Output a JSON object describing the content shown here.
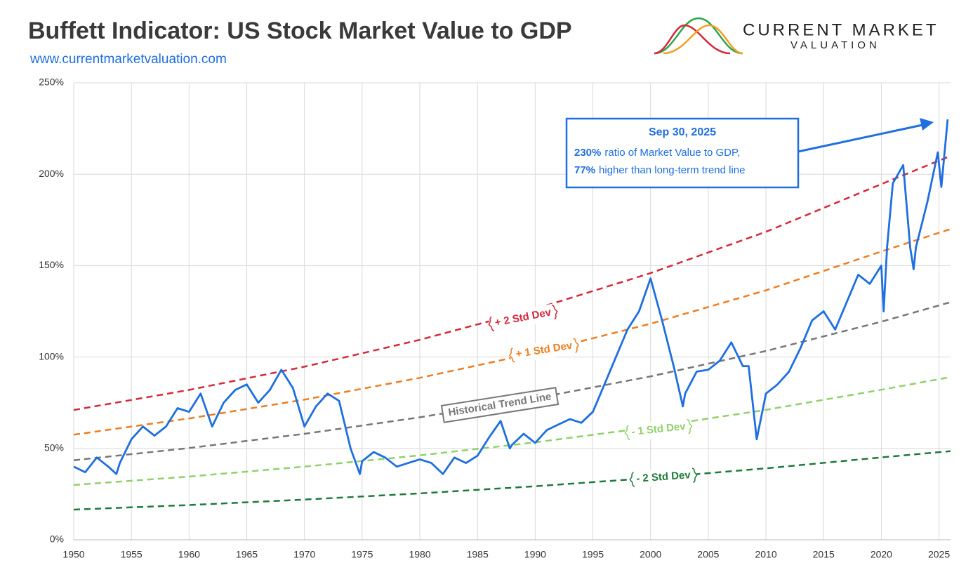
{
  "chart_data": {
    "type": "line",
    "title": "Buffett Indicator: US Stock Market Value to GDP",
    "subtitle": "www.currentmarketvaluation.com",
    "logo": {
      "line1": "CURRENT MARKET",
      "line2": "VALUATION"
    },
    "xlim": [
      1950,
      2026
    ],
    "xticks": [
      1950,
      1955,
      1960,
      1965,
      1970,
      1975,
      1980,
      1985,
      1990,
      1995,
      2000,
      2005,
      2010,
      2015,
      2020,
      2025
    ],
    "ylim": [
      0,
      250
    ],
    "yticks": [
      {
        "value": 0,
        "label": "0%"
      },
      {
        "value": 50,
        "label": "50%"
      },
      {
        "value": 100,
        "label": "100%"
      },
      {
        "value": 150,
        "label": "150%"
      },
      {
        "value": 200,
        "label": "200%"
      },
      {
        "value": 250,
        "label": "250%"
      }
    ],
    "grid": true,
    "series": [
      {
        "color": "#1f6fe0",
        "x": [
          1950,
          1951,
          1952,
          1953,
          1953.7,
          1954,
          1955,
          1956,
          1957,
          1958,
          1959,
          1960,
          1961,
          1962,
          1963,
          1964,
          1965,
          1966,
          1967,
          1968,
          1969,
          1970,
          1971,
          1972,
          1973,
          1974,
          1974.8,
          1975,
          1976,
          1977,
          1978,
          1979,
          1980,
          1981,
          1982,
          1983,
          1984,
          1985,
          1986,
          1987,
          1987.8,
          1988,
          1989,
          1990,
          1991,
          1992,
          1993,
          1994,
          1995,
          1996,
          1997,
          1998,
          1999,
          2000,
          2001,
          2002,
          2002.8,
          2003,
          2004,
          2005,
          2006,
          2007,
          2008,
          2008.5,
          2009.2,
          2010,
          2011,
          2012,
          2013,
          2014,
          2015,
          2016,
          2017,
          2018,
          2019,
          2020,
          2020.2,
          2020.5,
          2021,
          2021.9,
          2022.5,
          2022.8,
          2023,
          2024,
          2024.9,
          2025.2,
          2025.75
        ],
        "values": [
          40,
          37,
          45,
          40,
          36,
          42,
          55,
          62,
          57,
          62,
          72,
          70,
          80,
          62,
          75,
          82,
          85,
          75,
          82,
          93,
          83,
          62,
          73,
          80,
          76,
          50,
          36,
          43,
          48,
          45,
          40,
          42,
          44,
          42,
          36,
          45,
          42,
          46,
          56,
          65,
          50,
          52,
          58,
          53,
          60,
          63,
          66,
          64,
          70,
          85,
          100,
          115,
          125,
          143,
          120,
          95,
          73,
          80,
          92,
          93,
          98,
          108,
          95,
          95,
          55,
          80,
          85,
          92,
          105,
          120,
          125,
          115,
          130,
          145,
          140,
          150,
          125,
          160,
          195,
          205,
          160,
          148,
          160,
          185,
          212,
          193,
          230
        ]
      },
      {
        "name": "+ 2 Std Dev",
        "color": "#d62839",
        "dashed": true,
        "x": [
          1950,
          1960,
          1970,
          1980,
          1990,
          2000,
          2010,
          2020,
          2026
        ],
        "values": [
          71,
          82,
          94.7,
          109.4,
          126.3,
          145.9,
          168.5,
          194.6,
          210
        ]
      },
      {
        "name": "+ 1 Std Dev",
        "color": "#f07c1e",
        "dashed": true,
        "x": [
          1950,
          1960,
          1970,
          1980,
          1990,
          2000,
          2010,
          2020,
          2026
        ],
        "values": [
          57.5,
          66.4,
          76.7,
          88.6,
          102.3,
          118.2,
          136.5,
          157.7,
          170
        ]
      },
      {
        "name": "Historical Trend Line",
        "color": "#777777",
        "dashed": true,
        "x": [
          1950,
          1960,
          1970,
          1980,
          1990,
          2000,
          2010,
          2020,
          2026
        ],
        "values": [
          43.5,
          50.2,
          58,
          67,
          77.4,
          89.4,
          103.3,
          119.3,
          130
        ]
      },
      {
        "name": "- 1 Std Dev",
        "color": "#8fd16a",
        "dashed": true,
        "x": [
          1950,
          1960,
          1970,
          1980,
          1990,
          2000,
          2010,
          2020,
          2026
        ],
        "values": [
          30,
          34.6,
          40,
          46.2,
          53.3,
          61.6,
          71.1,
          82.1,
          89
        ]
      },
      {
        "name": "- 2 Std Dev",
        "color": "#1e7a3c",
        "dashed": true,
        "x": [
          1950,
          1960,
          1970,
          1980,
          1990,
          2000,
          2010,
          2020,
          2026
        ],
        "values": [
          16.5,
          19,
          22,
          25.4,
          29.3,
          33.8,
          39.1,
          45.1,
          48.5
        ]
      }
    ],
    "annotation": {
      "date": "Sep 30, 2025",
      "lines": [
        {
          "bold": "230%",
          "text": "ratio of Market Value to GDP,"
        },
        {
          "bold": "77%",
          "text": "higher than long-term trend line"
        }
      ]
    }
  }
}
